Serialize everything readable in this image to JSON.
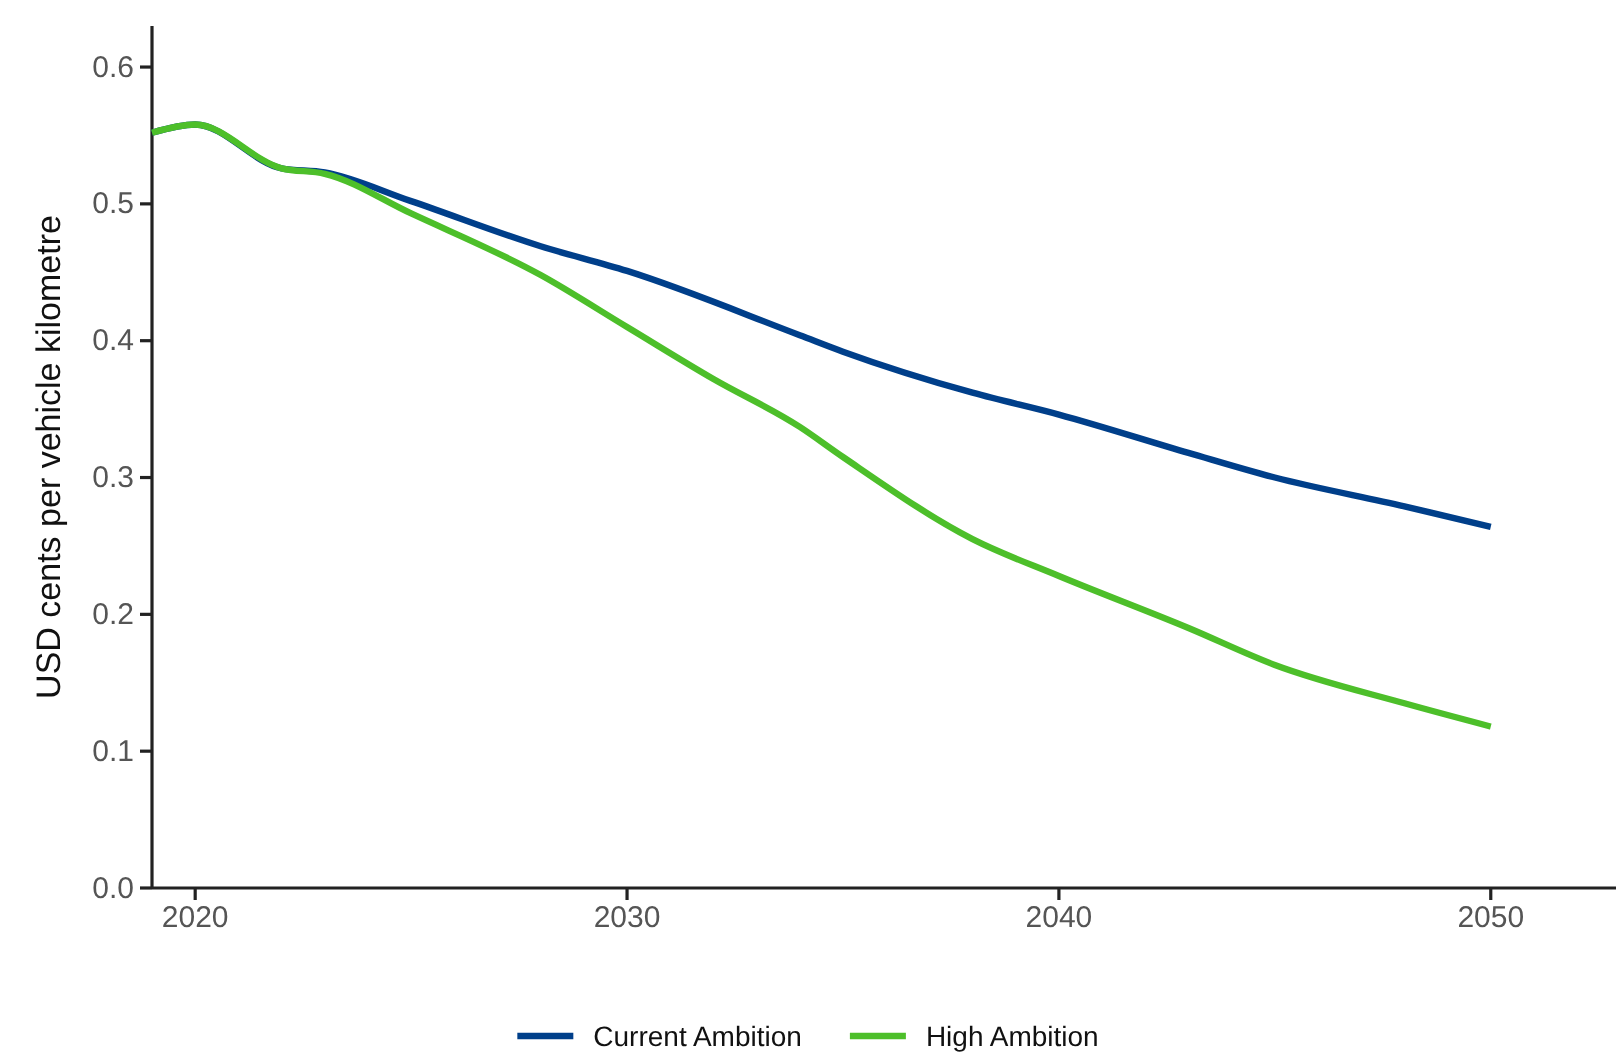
{
  "chart_data": {
    "type": "line",
    "ylabel": "USD cents per vehicle kilometre",
    "xlim": [
      2019,
      2052.9
    ],
    "xticks": [
      2020,
      2030,
      2040,
      2050
    ],
    "ylim": [
      0,
      0.63
    ],
    "yticks": [
      {
        "value": 0,
        "label": "0.0"
      },
      0.1,
      0.2,
      0.3,
      0.4,
      0.5,
      0.6
    ],
    "grid": false,
    "legend": "bottom",
    "line_style": "solid",
    "series": [
      {
        "name": "Current Ambition",
        "color": "#003f8a",
        "x": [
          2019,
          2020,
          2022,
          2023,
          2025,
          2028,
          2030,
          2034,
          2035,
          2038,
          2040,
          2043,
          2045,
          2048,
          2050
        ],
        "values": [
          0.552,
          0.558,
          0.526,
          0.523,
          0.502,
          0.469,
          0.451,
          0.404,
          0.392,
          0.362,
          0.346,
          0.318,
          0.3,
          0.279,
          0.264
        ]
      },
      {
        "name": "High Ambition",
        "color": "#4dbf2a",
        "x": [
          2019,
          2020,
          2022,
          2023,
          2025,
          2028,
          2030,
          2032,
          2034,
          2035,
          2038,
          2040,
          2043,
          2045,
          2048,
          2050
        ],
        "values": [
          0.552,
          0.558,
          0.526,
          0.522,
          0.493,
          0.448,
          0.41,
          0.372,
          0.337,
          0.315,
          0.255,
          0.228,
          0.19,
          0.163,
          0.135,
          0.118
        ]
      }
    ]
  }
}
